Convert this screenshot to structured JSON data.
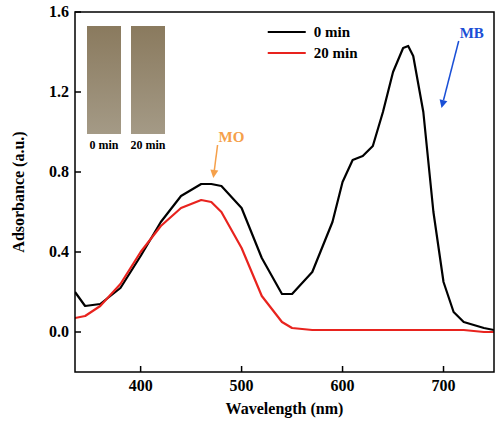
{
  "chart_data": {
    "type": "line",
    "x_label": "Wavelength (nm)",
    "y_label": "Adsorbance (a.u.)",
    "x": [
      335,
      345,
      360,
      380,
      400,
      420,
      440,
      460,
      470,
      480,
      500,
      520,
      540,
      550,
      570,
      590,
      600,
      610,
      620,
      630,
      640,
      650,
      660,
      665,
      670,
      680,
      690,
      700,
      710,
      720,
      740,
      750
    ],
    "series": [
      {
        "name": "0 min",
        "color": "#000000",
        "values": [
          0.2,
          0.13,
          0.14,
          0.22,
          0.38,
          0.55,
          0.68,
          0.74,
          0.74,
          0.73,
          0.62,
          0.37,
          0.19,
          0.19,
          0.3,
          0.55,
          0.75,
          0.86,
          0.88,
          0.93,
          1.1,
          1.3,
          1.42,
          1.43,
          1.38,
          1.1,
          0.6,
          0.25,
          0.1,
          0.05,
          0.02,
          0.01
        ]
      },
      {
        "name": "20 min",
        "color": "#e8231e",
        "values": [
          0.07,
          0.08,
          0.13,
          0.24,
          0.4,
          0.53,
          0.62,
          0.66,
          0.65,
          0.6,
          0.42,
          0.18,
          0.05,
          0.02,
          0.01,
          0.01,
          0.01,
          0.01,
          0.01,
          0.01,
          0.01,
          0.01,
          0.01,
          0.01,
          0.01,
          0.01,
          0.01,
          0.01,
          0.01,
          0.01,
          0,
          0
        ]
      }
    ],
    "xlim": [
      335,
      750
    ],
    "xticks": [
      400,
      500,
      600,
      700
    ],
    "ylim": [
      -0.2,
      1.6
    ],
    "yticks": [
      {
        "value": 0,
        "label": "0.0"
      },
      {
        "value": 0.4,
        "label": "0.4"
      },
      {
        "value": 0.8,
        "label": "0.8"
      },
      {
        "value": 1.2,
        "label": "1.2"
      },
      {
        "value": 1.6,
        "label": "1.6"
      }
    ],
    "legend": "top-right",
    "annotations": [
      {
        "text": "MO",
        "x": 490,
        "y": 0.95,
        "x_end": 472,
        "y_end": 0.77,
        "color": "#f5a04a"
      },
      {
        "text": "MB",
        "x": 728,
        "y": 1.47,
        "x_end": 698,
        "y_end": 1.12,
        "color": "#1a4fd6"
      }
    ],
    "inset_labels": [
      "0 min",
      "20 min"
    ]
  }
}
